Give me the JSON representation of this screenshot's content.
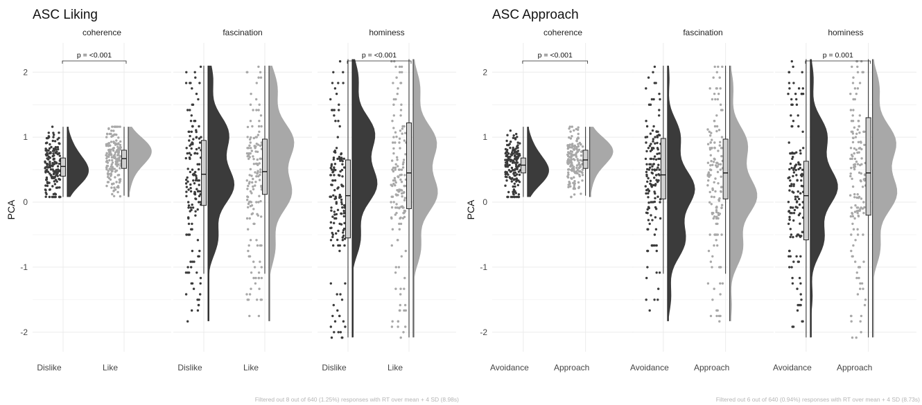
{
  "colors": {
    "dark": "#3b3b3b",
    "light": "#a8a8a8",
    "grid": "#ebebeb",
    "box_fill": "#cfcfcf"
  },
  "chart_data": [
    {
      "type": "raincloud",
      "title": "ASC Liking",
      "ylabel": "PCA",
      "ylim": [
        -2.3,
        2.45
      ],
      "yticks": [
        2,
        1,
        0,
        -1,
        -2
      ],
      "yticklabels": [
        "2",
        "1",
        "0",
        "-1",
        "-2"
      ],
      "caption": "Filtered out 8 out of 640 (1.25%) responses with RT over mean + 4 SD (8.98s)",
      "facets": [
        {
          "name": "coherence",
          "groups": [
            {
              "label": "Dislike",
              "shade": "dark",
              "range": [
                0.08,
                1.16
              ],
              "q1": 0.4,
              "median": 0.55,
              "q3": 0.68,
              "wmin": 0.08,
              "wmax": 1.16,
              "mode": 0.55
            },
            {
              "label": "Like",
              "shade": "light",
              "range": [
                0.08,
                1.16
              ],
              "q1": 0.52,
              "median": 0.67,
              "q3": 0.8,
              "wmin": 0.1,
              "wmax": 1.16,
              "mode": 0.72
            }
          ],
          "comparison": "p = <0.001"
        },
        {
          "name": "fascination",
          "groups": [
            {
              "label": "Dislike",
              "shade": "dark",
              "range": [
                -1.83,
                2.1
              ],
              "q1": -0.05,
              "median": 0.43,
              "q3": 0.95,
              "wmin": -1.1,
              "wmax": 2.1,
              "mode": 0.5
            },
            {
              "label": "Like",
              "shade": "light",
              "range": [
                -1.83,
                2.1
              ],
              "q1": 0.12,
              "median": 0.47,
              "q3": 0.97,
              "wmin": -1.1,
              "wmax": 2.1,
              "mode": 0.6
            }
          ],
          "comparison": ""
        },
        {
          "name": "hominess",
          "groups": [
            {
              "label": "Dislike",
              "shade": "dark",
              "range": [
                -2.08,
                2.2
              ],
              "q1": -0.55,
              "median": 0.1,
              "q3": 0.65,
              "wmin": -2.08,
              "wmax": 2.2,
              "mode": 0.6
            },
            {
              "label": "Like",
              "shade": "light",
              "range": [
                -2.08,
                2.2
              ],
              "q1": -0.1,
              "median": 0.45,
              "q3": 1.22,
              "wmin": -2.08,
              "wmax": 2.2,
              "mode": 0.5
            }
          ],
          "comparison": "p = <0.001"
        }
      ]
    },
    {
      "type": "raincloud",
      "title": "ASC Approach",
      "ylabel": "PCA",
      "ylim": [
        -2.3,
        2.45
      ],
      "yticks": [
        2,
        1,
        0,
        -1,
        -2
      ],
      "yticklabels": [
        "2",
        "1",
        "0",
        "-1",
        "-2"
      ],
      "caption": "Filtered out 6 out of 640 (0.94%) responses with RT over mean + 4 SD (8.73s)",
      "facets": [
        {
          "name": "coherence",
          "groups": [
            {
              "label": "Avoidance",
              "shade": "dark",
              "range": [
                0.08,
                1.16
              ],
              "q1": 0.45,
              "median": 0.57,
              "q3": 0.68,
              "wmin": 0.08,
              "wmax": 1.16,
              "mode": 0.55
            },
            {
              "label": "Approach",
              "shade": "light",
              "range": [
                0.08,
                1.16
              ],
              "q1": 0.52,
              "median": 0.65,
              "q3": 0.8,
              "wmin": 0.1,
              "wmax": 1.16,
              "mode": 0.72
            }
          ],
          "comparison": "p = <0.001"
        },
        {
          "name": "fascination",
          "groups": [
            {
              "label": "Avoidance",
              "shade": "dark",
              "range": [
                -1.83,
                2.1
              ],
              "q1": 0.05,
              "median": 0.42,
              "q3": 0.98,
              "wmin": -1.1,
              "wmax": 2.1,
              "mode": 0.1
            },
            {
              "label": "Approach",
              "shade": "light",
              "range": [
                -1.83,
                2.1
              ],
              "q1": 0.05,
              "median": 0.45,
              "q3": 0.97,
              "wmin": -1.1,
              "wmax": 2.1,
              "mode": 0.2
            }
          ],
          "comparison": ""
        },
        {
          "name": "hominess",
          "groups": [
            {
              "label": "Avoidance",
              "shade": "dark",
              "range": [
                -2.08,
                2.2
              ],
              "q1": -0.58,
              "median": 0.1,
              "q3": 0.63,
              "wmin": -2.08,
              "wmax": 2.2,
              "mode": 0.3
            },
            {
              "label": "Approach",
              "shade": "light",
              "range": [
                -2.08,
                2.2
              ],
              "q1": -0.2,
              "median": 0.45,
              "q3": 1.3,
              "wmin": -2.08,
              "wmax": 2.2,
              "mode": 0.5
            }
          ],
          "comparison": "p = 0.001"
        }
      ]
    }
  ]
}
